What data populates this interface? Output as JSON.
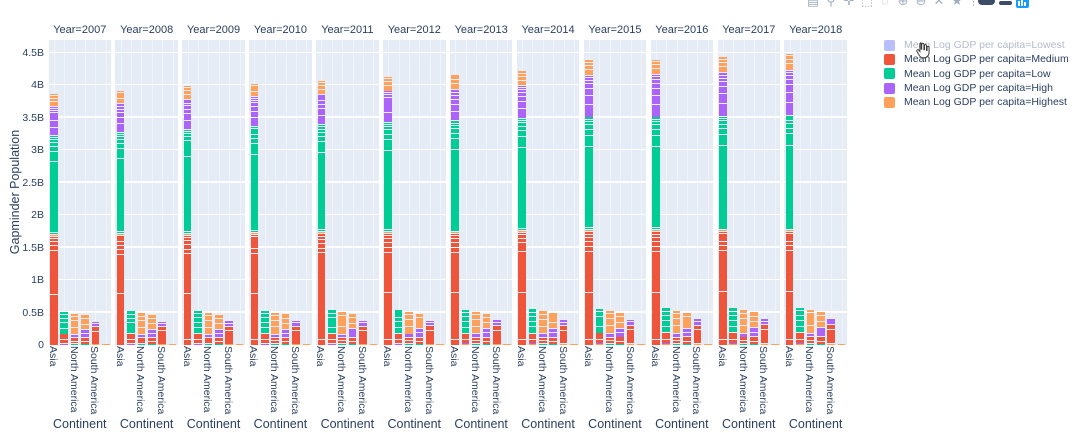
{
  "palette": {
    "Lowest": "#636EFA",
    "Medium": "#EF553B",
    "Low": "#00CC96",
    "High": "#AB63FA",
    "Highest": "#FFA15A"
  },
  "style_colors": {
    "text": "#2a3f5f",
    "muted_text": "#b2bccb",
    "panel_background": "#E5ECF6",
    "grid": "#FFFFFF",
    "logo_blue": "#119DFF"
  },
  "legend": {
    "items": [
      {
        "label": "Mean Log GDP per capita=Lowest",
        "color_key": "Lowest",
        "state": "hidden"
      },
      {
        "label": "Mean Log GDP per capita=Medium",
        "color_key": "Medium",
        "state": "visible"
      },
      {
        "label": "Mean Log GDP per capita=Low",
        "color_key": "Low",
        "state": "visible"
      },
      {
        "label": "Mean Log GDP per capita=High",
        "color_key": "High",
        "state": "visible"
      },
      {
        "label": "Mean Log GDP per capita=Highest",
        "color_key": "Highest",
        "state": "visible"
      }
    ]
  },
  "modebar": {
    "icons": [
      {
        "name": "camera-icon",
        "glyph": "▤"
      },
      {
        "name": "zoom-icon",
        "glyph": "⚲"
      },
      {
        "name": "pan-icon",
        "glyph": "✛"
      },
      {
        "name": "box-select-icon",
        "glyph": "⬚"
      },
      {
        "name": "lasso-select-icon",
        "glyph": "◌"
      },
      {
        "name": "zoom-in-icon",
        "glyph": "⊕"
      },
      {
        "name": "zoom-out-icon",
        "glyph": "⊖"
      },
      {
        "name": "autoscale-icon",
        "glyph": "✕"
      },
      {
        "name": "reset-axes-icon",
        "glyph": "★"
      }
    ]
  },
  "chart_data": {
    "type": "bar",
    "barmode": "stack",
    "facet_by": "Year",
    "ylabel": "Gapminder Population",
    "xlabel": "Continent",
    "yticks": {
      "values": [
        0,
        0.5,
        1,
        1.5,
        2,
        2.5,
        3,
        3.5,
        4,
        4.5
      ],
      "labels": [
        "0",
        "0.5B",
        "1B",
        "1.5B",
        "2B",
        "2.5B",
        "3B",
        "3.5B",
        "4B",
        "4.5B"
      ]
    },
    "ylim": [
      0,
      4.7
    ],
    "x_slots": 6,
    "x_tick_shown": [
      {
        "slot": 0,
        "label": "Asia"
      },
      {
        "slot": 2,
        "label": "North America"
      },
      {
        "slot": 4,
        "label": "South America"
      }
    ],
    "legend_note": "series 'Lowest' is toggled off in the legend (grayed out, cursor hovering)",
    "block_subsplits": {
      "Medium": [
        0.05,
        0.42,
        0.36,
        0.042,
        0.042,
        0.036,
        0.03,
        0.02
      ],
      "Low": [
        0.02,
        0.72,
        0.1,
        0.05,
        0.04,
        0.03,
        0.02,
        0.02
      ],
      "High": [
        0.3,
        0.22,
        0.16,
        0.12,
        0.08,
        0.07,
        0.05
      ],
      "Highest": [
        0.38,
        0.27,
        0.2,
        0.15
      ]
    },
    "base_small_bars": [
      [
        [
          "Highest",
          0.012
        ],
        [
          "High",
          0.02
        ],
        [
          "Medium",
          0.055
        ],
        [
          "Medium",
          0.09
        ],
        [
          "Low",
          0.09
        ],
        [
          "Low",
          0.08
        ],
        [
          "Low",
          0.07
        ],
        [
          "Low",
          0.06
        ],
        [
          "Low",
          0.05
        ]
      ],
      [
        [
          "Low",
          0.028
        ],
        [
          "Medium",
          0.04
        ],
        [
          "Medium",
          0.05
        ],
        [
          "High",
          0.05
        ],
        [
          "Highest",
          0.11
        ],
        [
          "Highest",
          0.1
        ],
        [
          "Highest",
          0.07
        ],
        [
          "Highest",
          0.05
        ]
      ],
      [
        [
          "Low",
          0.02
        ],
        [
          "Medium",
          0.04
        ],
        [
          "Medium",
          0.06
        ],
        [
          "High",
          0.065
        ],
        [
          "High",
          0.06
        ],
        [
          "Highest",
          0.085
        ],
        [
          "Highest",
          0.08
        ],
        [
          "Highest",
          0.06
        ]
      ],
      [
        [
          "Highest",
          0.022
        ],
        [
          "Medium",
          0.2
        ],
        [
          "Medium",
          0.065
        ],
        [
          "High",
          0.05
        ],
        [
          "High",
          0.035
        ]
      ],
      [
        [
          "Medium",
          0.006
        ],
        [
          "Highest",
          0.02
        ]
      ]
    ],
    "panels": [
      {
        "label": "Year=2007",
        "asia_blocks": {
          "Medium": 1.68,
          "Highest_sliver": 0.03,
          "Low": 1.52,
          "High": 0.45,
          "Highest": 0.2
        },
        "small_scale": 1.0
      },
      {
        "label": "Year=2008",
        "asia_blocks": {
          "Medium": 1.69,
          "Highest_sliver": 0.03,
          "Low": 1.56,
          "High": 0.45,
          "Highest": 0.2
        },
        "small_scale": 1.01
      },
      {
        "label": "Year=2009",
        "asia_blocks": {
          "Medium": 1.7,
          "Highest_sliver": 0.03,
          "Low": 1.6,
          "High": 0.46,
          "Highest": 0.21
        },
        "small_scale": 1.02
      },
      {
        "label": "Year=2010",
        "asia_blocks": {
          "Medium": 1.71,
          "Highest_sliver": 0.03,
          "Low": 1.63,
          "High": 0.46,
          "Highest": 0.21
        },
        "small_scale": 1.03
      },
      {
        "label": "Year=2011",
        "asia_blocks": {
          "Medium": 1.72,
          "Highest_sliver": 0.03,
          "Low": 1.65,
          "High": 0.47,
          "Highest": 0.21
        },
        "small_scale": 1.04
      },
      {
        "label": "Year=2012",
        "asia_blocks": {
          "Medium": 1.73,
          "Highest_sliver": 0.03,
          "Low": 1.68,
          "High": 0.48,
          "Highest": 0.22
        },
        "small_scale": 1.05
      },
      {
        "label": "Year=2013",
        "asia_blocks": {
          "Medium": 1.73,
          "Highest_sliver": 0.03,
          "Low": 1.7,
          "High": 0.49,
          "Highest": 0.22
        },
        "small_scale": 1.06
      },
      {
        "label": "Year=2014",
        "asia_blocks": {
          "Medium": 1.74,
          "Highest_sliver": 0.03,
          "Low": 1.73,
          "High": 0.5,
          "Highest": 0.23
        },
        "small_scale": 1.07
      },
      {
        "label": "Year=2015",
        "asia_blocks": {
          "Medium": 1.75,
          "Highest_sliver": 0.03,
          "Low": 1.74,
          "High": 0.64,
          "Highest": 0.24
        },
        "small_scale": 1.085
      },
      {
        "label": "Year=2016",
        "asia_blocks": {
          "Medium": 1.75,
          "Highest_sliver": 0.03,
          "Low": 1.74,
          "High": 0.65,
          "Highest": 0.24
        },
        "small_scale": 1.095
      },
      {
        "label": "Year=2017",
        "asia_blocks": {
          "Medium": 1.76,
          "Highest_sliver": 0.03,
          "Low": 1.74,
          "High": 0.67,
          "Highest": 0.25
        },
        "small_scale": 1.105
      },
      {
        "label": "Year=2018",
        "asia_blocks": {
          "Medium": 1.76,
          "Highest_sliver": 0.03,
          "Low": 1.75,
          "High": 0.7,
          "Highest": 0.26
        },
        "small_scale": 1.12
      }
    ]
  }
}
